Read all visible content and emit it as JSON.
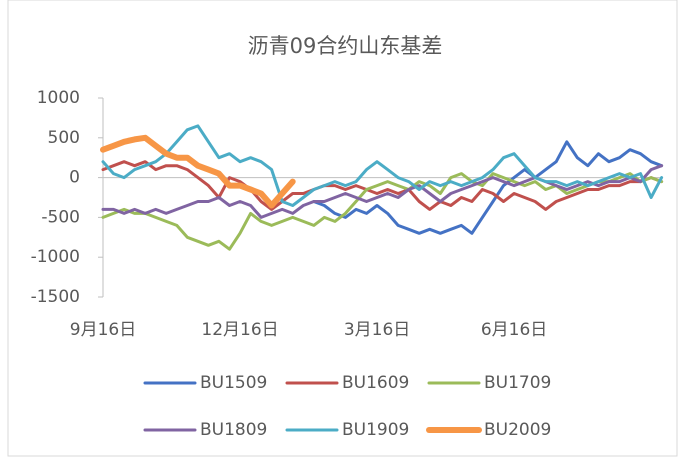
{
  "chart_data": {
    "type": "line",
    "title": "沥青09合约山东基差",
    "categories": [
      "9月16日",
      null,
      null,
      null,
      null,
      null,
      null,
      null,
      null,
      null,
      null,
      null,
      null,
      "12月16日",
      null,
      null,
      null,
      null,
      null,
      null,
      null,
      null,
      null,
      null,
      null,
      null,
      "3月16日",
      null,
      null,
      null,
      null,
      null,
      null,
      null,
      null,
      null,
      null,
      null,
      null,
      "6月16日",
      null,
      null,
      null,
      null,
      null,
      null,
      null,
      null,
      null,
      null,
      null,
      null,
      null,
      null
    ],
    "ylim": [
      -1500,
      1000
    ],
    "yticks": [
      1000,
      500,
      0,
      -500,
      -1000,
      -1500
    ],
    "series": [
      {
        "name": "BU1509",
        "color": "#4472c4",
        "values": [
          null,
          null,
          null,
          null,
          null,
          null,
          null,
          null,
          null,
          null,
          null,
          null,
          null,
          null,
          null,
          null,
          null,
          null,
          null,
          null,
          -300,
          -350,
          -450,
          -500,
          -400,
          -450,
          -350,
          -450,
          -600,
          -650,
          -700,
          -650,
          -700,
          -650,
          -600,
          -700,
          -500,
          -300,
          -100,
          0,
          100,
          0,
          100,
          200,
          450,
          250,
          150,
          300,
          200,
          250,
          350,
          300,
          200,
          150
        ]
      },
      {
        "name": "BU1609",
        "color": "#c0504d",
        "values": [
          100,
          150,
          200,
          150,
          200,
          100,
          150,
          150,
          100,
          0,
          -100,
          -250,
          0,
          -50,
          -150,
          -300,
          -400,
          -300,
          -200,
          -200,
          -150,
          -100,
          -100,
          -150,
          -100,
          -150,
          -200,
          -150,
          -200,
          -150,
          -300,
          -400,
          -300,
          -350,
          -250,
          -300,
          -150,
          -200,
          -300,
          -200,
          -250,
          -300,
          -400,
          -300,
          -250,
          -200,
          -150,
          -150,
          -100,
          -100,
          -50,
          -50,
          0,
          -50
        ]
      },
      {
        "name": "BU1709",
        "color": "#9bbb59",
        "values": [
          -500,
          -450,
          -400,
          -450,
          -450,
          -500,
          -550,
          -600,
          -750,
          -800,
          -850,
          -800,
          -900,
          -700,
          -450,
          -550,
          -600,
          -550,
          -500,
          -550,
          -600,
          -500,
          -550,
          -450,
          -300,
          -150,
          -100,
          -50,
          -100,
          -150,
          -50,
          -100,
          -200,
          0,
          50,
          -50,
          -100,
          50,
          0,
          -50,
          -100,
          -50,
          -150,
          -100,
          -200,
          -150,
          -100,
          -50,
          -50,
          0,
          50,
          -50,
          0,
          -50
        ]
      },
      {
        "name": "BU1809",
        "color": "#8064a2",
        "values": [
          -400,
          -400,
          -450,
          -400,
          -450,
          -400,
          -450,
          -400,
          -350,
          -300,
          -300,
          -250,
          -350,
          -300,
          -350,
          -500,
          -450,
          -400,
          -450,
          -350,
          -300,
          -300,
          -250,
          -200,
          -250,
          -300,
          -250,
          -200,
          -250,
          -150,
          -100,
          -200,
          -300,
          -200,
          -150,
          -100,
          -50,
          0,
          -50,
          -100,
          -50,
          0,
          -50,
          -100,
          -150,
          -100,
          -50,
          -100,
          -50,
          -50,
          0,
          -50,
          100,
          150
        ]
      },
      {
        "name": "BU1909",
        "color": "#4bacc6",
        "values": [
          200,
          50,
          0,
          100,
          150,
          200,
          300,
          450,
          600,
          650,
          450,
          250,
          300,
          200,
          250,
          200,
          100,
          -300,
          -350,
          -250,
          -150,
          -100,
          -50,
          -100,
          -50,
          100,
          200,
          100,
          0,
          -50,
          -150,
          -50,
          -100,
          -50,
          -100,
          -50,
          0,
          100,
          250,
          300,
          150,
          0,
          -50,
          -50,
          -100,
          -50,
          -100,
          -50,
          0,
          50,
          0,
          50,
          -250,
          0
        ]
      },
      {
        "name": "BU2009",
        "color": "#f79646",
        "width": 6,
        "values": [
          350,
          400,
          450,
          480,
          500,
          400,
          300,
          250,
          250,
          150,
          100,
          50,
          -100,
          -100,
          -150,
          -200,
          -350,
          -200,
          -50,
          null,
          null,
          null,
          null,
          null,
          null,
          null,
          null,
          null,
          null,
          null,
          null,
          null,
          null,
          null,
          null,
          null,
          null,
          null,
          null,
          null,
          null,
          null,
          null,
          null,
          null,
          null,
          null,
          null,
          null,
          null,
          null,
          null,
          null,
          null
        ]
      }
    ]
  }
}
